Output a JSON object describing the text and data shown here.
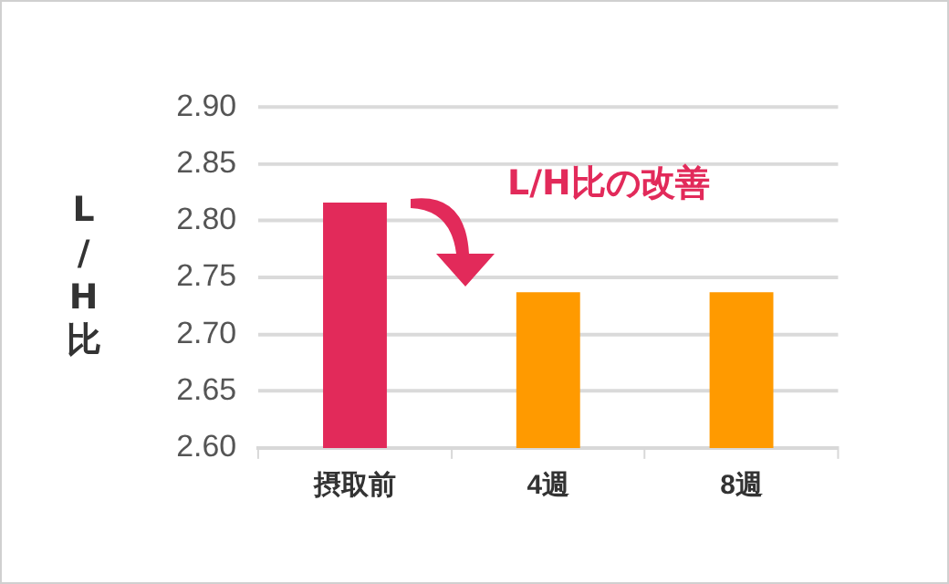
{
  "chart_data": {
    "type": "bar",
    "ylabel": "L/H比",
    "categories": [
      "摂取前",
      "4週",
      "8週"
    ],
    "values": [
      2.816,
      2.737,
      2.737
    ],
    "colors": [
      "#e22a5a",
      "#ff9a00",
      "#ff9a00"
    ],
    "ylim": [
      2.6,
      2.9
    ],
    "yticks": [
      {
        "value": 2.6,
        "label": "2.60"
      },
      2.65,
      {
        "value": 2.7,
        "label": "2.70"
      },
      2.75,
      {
        "value": 2.8,
        "label": "2.80"
      },
      2.85,
      {
        "value": 2.9,
        "label": "2.90"
      }
    ],
    "grid": "y",
    "legend": false,
    "annotations": [
      "L/H比の改善"
    ]
  }
}
